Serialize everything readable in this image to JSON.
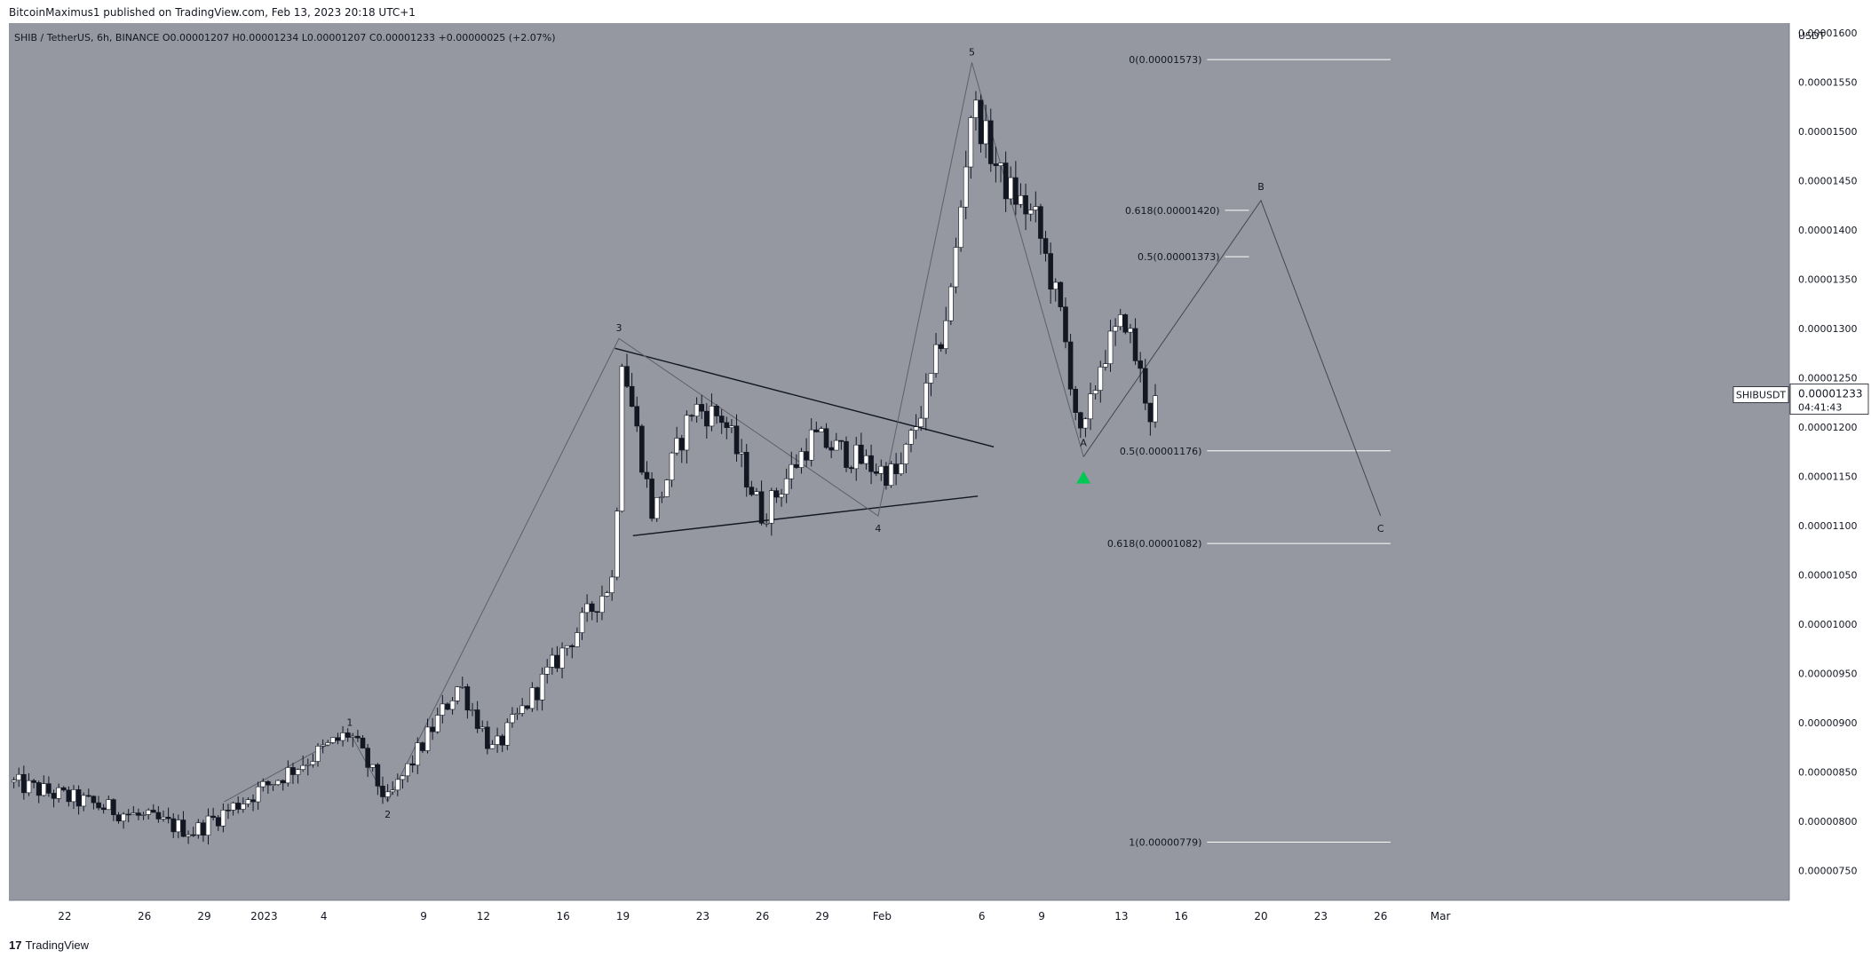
{
  "header": {
    "publish_line": "BitcoinMaximus1 published on TradingView.com, Feb 13, 2023 20:18 UTC+1"
  },
  "footer": {
    "brand": "TradingView",
    "brand_mark": "17"
  },
  "colors": {
    "plot_bg": "#9598a1",
    "candle_up": "#ffffff",
    "candle_down": "#131722",
    "wick": "#131722",
    "wave_line": "#5d606b",
    "fib_line": "#ffffff",
    "triangle_line": "#131722",
    "projection_line": "#434651",
    "arrow": "#00c853"
  },
  "chart_data": {
    "type": "candlestick",
    "legend": {
      "symbol": "SHIB / TetherUS, 6h, BINANCE",
      "o_label": "O",
      "o_value": "0.00001207",
      "h_label": "H",
      "h_value": "0.00001234",
      "l_label": "L",
      "l_value": "0.00001207",
      "c_label": "C",
      "c_value": "0.00001233",
      "change": "+0.00000025 (+2.07%)"
    },
    "y_axis": {
      "unit": "USDT",
      "range": [
        7.2e-06,
        1.61e-05
      ],
      "ticks": [
        "0.00001600",
        "0.00001550",
        "0.00001500",
        "0.00001450",
        "0.00001400",
        "0.00001350",
        "0.00001300",
        "0.00001250",
        "0.00001200",
        "0.00001150",
        "0.00001100",
        "0.00001050",
        "0.00001000",
        "0.00000950",
        "0.00000900",
        "0.00000850",
        "0.00000800",
        "0.00000750"
      ],
      "tick_values": [
        1.6e-05,
        1.55e-05,
        1.5e-05,
        1.45e-05,
        1.4e-05,
        1.35e-05,
        1.3e-05,
        1.25e-05,
        1.2e-05,
        1.15e-05,
        1.1e-05,
        1.05e-05,
        1e-05,
        9.5e-06,
        9e-06,
        8.5e-06,
        8e-06,
        7.5e-06
      ]
    },
    "x_axis": {
      "range_days": [
        -12.8,
        76.5
      ],
      "ticks": [
        {
          "label": "22",
          "day": -10
        },
        {
          "label": "26",
          "day": -6
        },
        {
          "label": "29",
          "day": -3
        },
        {
          "label": "2023",
          "day": 0
        },
        {
          "label": "4",
          "day": 3
        },
        {
          "label": "9",
          "day": 8
        },
        {
          "label": "12",
          "day": 11
        },
        {
          "label": "16",
          "day": 15
        },
        {
          "label": "19",
          "day": 18
        },
        {
          "label": "23",
          "day": 22
        },
        {
          "label": "26",
          "day": 25
        },
        {
          "label": "29",
          "day": 28
        },
        {
          "label": "Feb",
          "day": 31
        },
        {
          "label": "6",
          "day": 36
        },
        {
          "label": "9",
          "day": 39
        },
        {
          "label": "13",
          "day": 43
        },
        {
          "label": "16",
          "day": 46
        },
        {
          "label": "20",
          "day": 50
        },
        {
          "label": "23",
          "day": 53
        },
        {
          "label": "26",
          "day": 56
        },
        {
          "label": "Mar",
          "day": 59
        }
      ]
    },
    "price_key_points": [
      {
        "day": -12.8,
        "price": 8.4e-06
      },
      {
        "day": -3.5,
        "price": 7.9e-06
      },
      {
        "day": 4.3,
        "price": 8.9e-06
      },
      {
        "day": 6.2,
        "price": 8.2e-06
      },
      {
        "day": 9.8,
        "price": 9.4e-06
      },
      {
        "day": 11.5,
        "price": 8.7e-06
      },
      {
        "day": 17.6,
        "price": 1.05e-05
      },
      {
        "day": 17.9,
        "price": 1.28e-05
      },
      {
        "day": 19.5,
        "price": 1.11e-05
      },
      {
        "day": 21.5,
        "price": 1.22e-05
      },
      {
        "day": 23.0,
        "price": 1.21e-05
      },
      {
        "day": 25.0,
        "price": 1.11e-05
      },
      {
        "day": 27.5,
        "price": 1.19e-05
      },
      {
        "day": 30.5,
        "price": 1.16e-05
      },
      {
        "day": 31.8,
        "price": 1.15e-05
      },
      {
        "day": 33.5,
        "price": 1.25e-05
      },
      {
        "day": 34.5,
        "price": 1.34e-05
      },
      {
        "day": 35.5,
        "price": 1.53e-05
      },
      {
        "day": 37.0,
        "price": 1.45e-05
      },
      {
        "day": 38.7,
        "price": 1.41e-05
      },
      {
        "day": 40.0,
        "price": 1.31e-05
      },
      {
        "day": 41.0,
        "price": 1.18e-05
      },
      {
        "day": 42.0,
        "price": 1.27e-05
      },
      {
        "day": 43.2,
        "price": 1.31e-05
      },
      {
        "day": 44.5,
        "price": 1.21e-05
      },
      {
        "day": 44.8,
        "price": 1.233e-05
      }
    ],
    "last_price_label": {
      "symbol": "SHIBUSDT",
      "price": "0.00001233",
      "countdown": "04:41:43",
      "value": 1.233e-05
    },
    "wave_count": [
      {
        "label": "1",
        "day": 4.3,
        "price": 8.9e-06,
        "placement": "above"
      },
      {
        "label": "2",
        "day": 6.2,
        "price": 8.2e-06,
        "placement": "below"
      },
      {
        "label": "3",
        "day": 17.8,
        "price": 1.29e-05,
        "placement": "above"
      },
      {
        "label": "4",
        "day": 30.8,
        "price": 1.11e-05,
        "placement": "below"
      },
      {
        "label": "5",
        "day": 35.5,
        "price": 1.57e-05,
        "placement": "above"
      }
    ],
    "wave_path": [
      {
        "day": -2,
        "price": 8.2e-06
      },
      {
        "day": 4.3,
        "price": 8.9e-06
      },
      {
        "day": 6.2,
        "price": 8.2e-06
      },
      {
        "day": 17.8,
        "price": 1.29e-05
      },
      {
        "day": 30.8,
        "price": 1.11e-05
      },
      {
        "day": 35.5,
        "price": 1.57e-05
      },
      {
        "day": 41.1,
        "price": 1.17e-05
      }
    ],
    "abc_projection": {
      "points": [
        {
          "label": "A",
          "day": 41.1,
          "price": 1.17e-05
        },
        {
          "label": "B",
          "day": 50.0,
          "price": 1.43e-05
        },
        {
          "label": "C",
          "day": 56.0,
          "price": 1.11e-05
        }
      ]
    },
    "triangle": {
      "upper": [
        {
          "day": 17.6,
          "price": 1.28e-05
        },
        {
          "day": 36.6,
          "price": 1.18e-05
        }
      ],
      "lower": [
        {
          "day": 18.5,
          "price": 1.09e-05
        },
        {
          "day": 35.8,
          "price": 1.13e-05
        }
      ]
    },
    "buy_marker": {
      "day": 41.1,
      "price": 1.15e-05
    },
    "fib_levels": [
      {
        "label": "0(0.00001573)",
        "price": 1.573e-05,
        "start_day": 47.3,
        "end_day": 56.5
      },
      {
        "label": "0.618(0.00001420)",
        "price": 1.42e-05,
        "start_day": 48.2,
        "end_day": 49.4
      },
      {
        "label": "0.5(0.00001373)",
        "price": 1.373e-05,
        "start_day": 48.2,
        "end_day": 49.4
      },
      {
        "label": "0.5(0.00001176)",
        "price": 1.176e-05,
        "start_day": 47.3,
        "end_day": 56.5
      },
      {
        "label": "0.618(0.00001082)",
        "price": 1.082e-05,
        "start_day": 47.3,
        "end_day": 56.5
      },
      {
        "label": "1(0.00000779)",
        "price": 7.79e-06,
        "start_day": 47.3,
        "end_day": 56.5
      }
    ]
  }
}
